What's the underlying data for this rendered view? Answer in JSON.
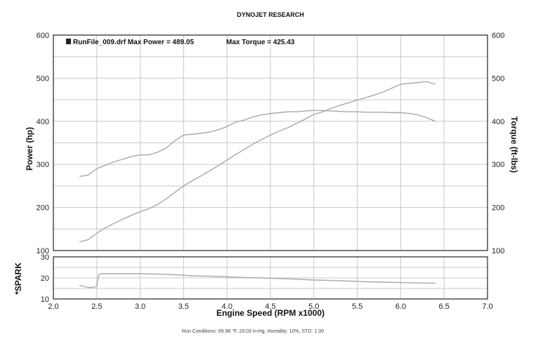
{
  "header": {
    "title": "DYNOJET RESEARCH"
  },
  "legend": {
    "run_label": "RunFile_009.drf Max Power = 489.05",
    "torque_label": "Max Torque = 425.43"
  },
  "footer": {
    "text": "Run Conditions: 69.98 °F, 29.03 in-Hg,  Humidity: 10%,  STD: 1.00"
  },
  "colors": {
    "line": "#a8a8a8",
    "grid": "#c9c9c9",
    "frame": "#222222"
  },
  "chart_data": [
    {
      "type": "line",
      "title": "DYNOJET RESEARCH",
      "xlabel": "Engine Speed (RPM x1000)",
      "ylabel": "Power (hp)",
      "y2label": "Torque (ft-lbs)",
      "xlim": [
        2.0,
        7.0
      ],
      "ylim": [
        100,
        600
      ],
      "y2lim": [
        100,
        600
      ],
      "x_ticks": [
        "2.0",
        "2.5",
        "3.0",
        "3.5",
        "4.0",
        "4.5",
        "5.0",
        "5.5",
        "6.0",
        "6.5",
        "7.0"
      ],
      "y_ticks": [
        "100",
        "200",
        "300",
        "400",
        "500",
        "600"
      ],
      "y2_ticks": [
        "100",
        "200",
        "300",
        "400",
        "500",
        "600"
      ],
      "grid": true,
      "series": [
        {
          "axis": "left",
          "x": [
            2.3,
            2.4,
            2.5,
            2.6,
            2.7,
            2.8,
            2.9,
            3.0,
            3.1,
            3.2,
            3.3,
            3.4,
            3.5,
            3.6,
            3.7,
            3.8,
            3.9,
            4.0,
            4.1,
            4.2,
            4.3,
            4.4,
            4.5,
            4.6,
            4.7,
            4.8,
            4.9,
            5.0,
            5.1,
            5.2,
            5.3,
            5.4,
            5.5,
            5.6,
            5.7,
            5.8,
            5.9,
            6.0,
            6.1,
            6.2,
            6.3,
            6.4
          ],
          "values": [
            120,
            125,
            140,
            153,
            163,
            173,
            182,
            190,
            197,
            207,
            220,
            235,
            250,
            262,
            273,
            285,
            297,
            310,
            323,
            335,
            347,
            358,
            368,
            377,
            385,
            395,
            405,
            416,
            422,
            430,
            437,
            443,
            449,
            455,
            461,
            468,
            477,
            486,
            488,
            490,
            492,
            486
          ]
        },
        {
          "axis": "right",
          "x": [
            2.3,
            2.4,
            2.5,
            2.6,
            2.7,
            2.8,
            2.9,
            3.0,
            3.1,
            3.2,
            3.3,
            3.4,
            3.5,
            3.6,
            3.7,
            3.8,
            3.9,
            4.0,
            4.1,
            4.2,
            4.3,
            4.4,
            4.5,
            4.6,
            4.7,
            4.8,
            4.9,
            5.0,
            5.1,
            5.2,
            5.3,
            5.4,
            5.5,
            5.6,
            5.7,
            5.8,
            5.9,
            6.0,
            6.1,
            6.2,
            6.3,
            6.4
          ],
          "values": [
            272,
            275,
            290,
            298,
            306,
            312,
            318,
            322,
            322,
            328,
            338,
            355,
            368,
            370,
            372,
            375,
            380,
            388,
            398,
            403,
            410,
            415,
            418,
            420,
            422,
            422,
            424,
            425,
            425,
            424,
            423,
            422,
            422,
            421,
            421,
            421,
            420,
            420,
            418,
            415,
            408,
            400
          ]
        }
      ]
    },
    {
      "type": "line",
      "ylabel": "*SPARK",
      "xlim": [
        2.0,
        7.0
      ],
      "ylim": [
        10,
        30
      ],
      "y_ticks": [
        "10",
        "20",
        "30"
      ],
      "grid": true,
      "series": [
        {
          "x": [
            2.3,
            2.35,
            2.4,
            2.45,
            2.5,
            2.52,
            2.55,
            2.6,
            2.8,
            3.0,
            3.2,
            3.4,
            3.6,
            3.8,
            4.0,
            4.2,
            4.4,
            4.6,
            4.8,
            5.0,
            5.2,
            5.4,
            5.6,
            5.8,
            6.0,
            6.2,
            6.4
          ],
          "values": [
            16.5,
            16,
            15.5,
            15.5,
            16,
            21.5,
            22,
            22,
            22,
            22,
            21.8,
            21.5,
            21,
            20.8,
            20.5,
            20.2,
            20,
            19.7,
            19.4,
            19,
            18.8,
            18.5,
            18.2,
            18,
            17.8,
            17.6,
            17.5
          ]
        }
      ]
    }
  ]
}
